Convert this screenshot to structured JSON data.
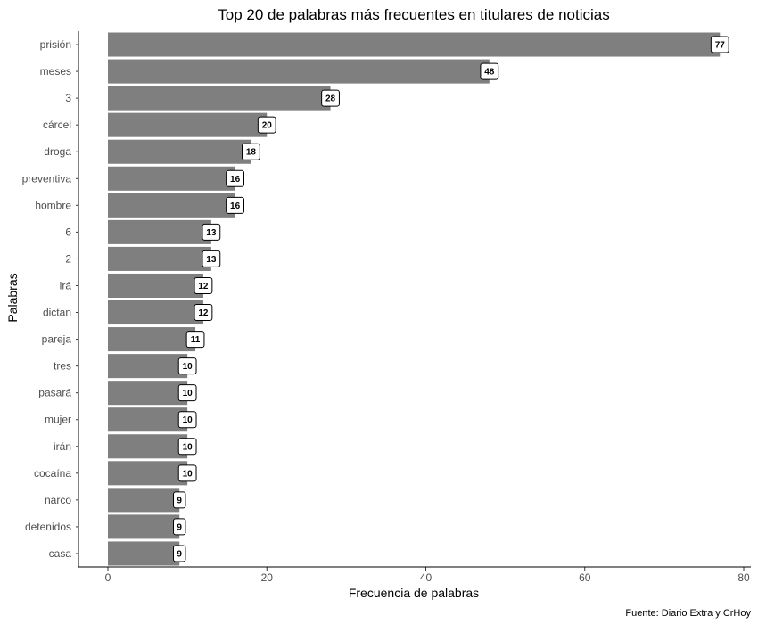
{
  "chart_data": {
    "type": "bar",
    "orientation": "horizontal",
    "title": "Top 20 de palabras más frecuentes en titulares de noticias",
    "xlabel": "Frecuencia de palabras",
    "ylabel": "Palabras",
    "caption": "Fuente: Diario Extra y CrHoy",
    "categories": [
      "prisión",
      "meses",
      "3",
      "cárcel",
      "droga",
      "preventiva",
      "hombre",
      "6",
      "2",
      "irá",
      "dictan",
      "pareja",
      "tres",
      "pasará",
      "mujer",
      "irán",
      "cocaína",
      "narco",
      "detenidos",
      "casa"
    ],
    "values": [
      77,
      48,
      28,
      20,
      18,
      16,
      16,
      13,
      13,
      12,
      12,
      11,
      10,
      10,
      10,
      10,
      10,
      9,
      9,
      9
    ],
    "data_labels": [
      "77",
      "48",
      "28",
      "20",
      "18",
      "16",
      "16",
      "13",
      "13",
      "12",
      "12",
      "11",
      "10",
      "10",
      "10",
      "10",
      "10",
      "9",
      "9",
      "9"
    ],
    "xticks": [
      0,
      20,
      40,
      60,
      80
    ],
    "xtick_labels": [
      "0",
      "20",
      "40",
      "60",
      "80"
    ],
    "xlim": [
      0,
      80
    ],
    "grid": false,
    "legend": "none",
    "bar_color": "#7f7f7f"
  }
}
